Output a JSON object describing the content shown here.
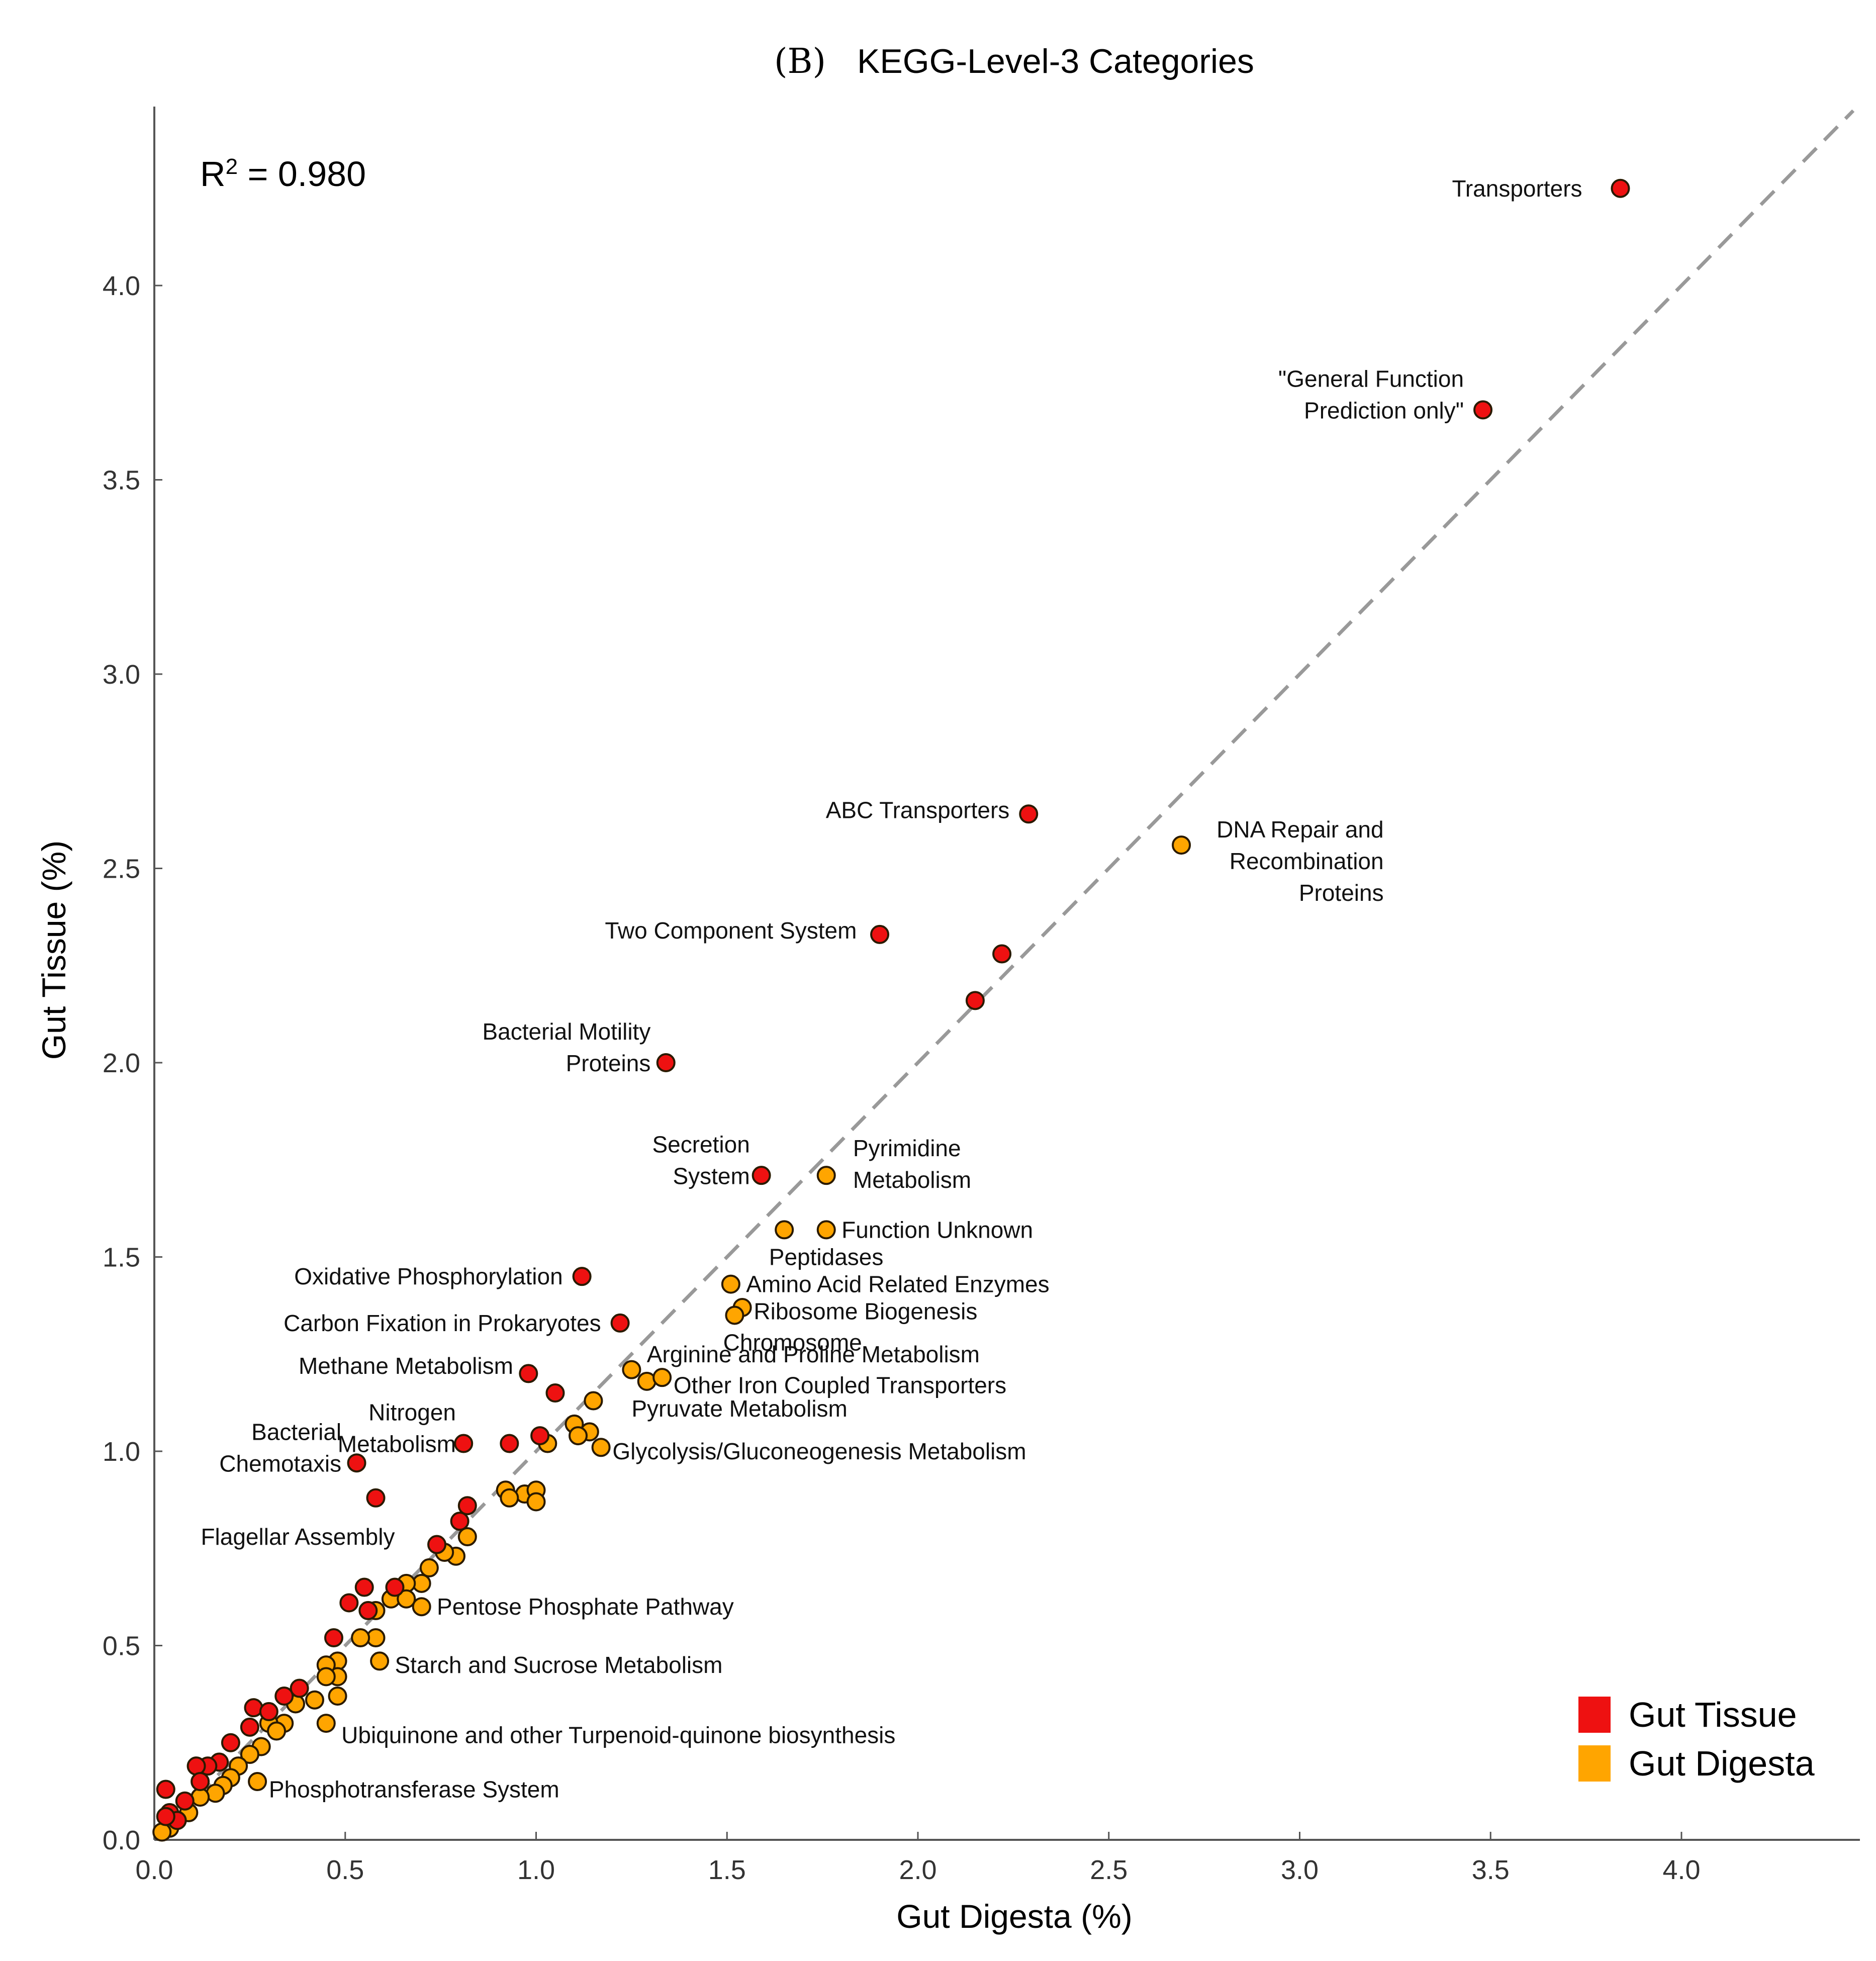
{
  "chart_data": {
    "type": "scatter",
    "title_prefix": "(B)",
    "title": "KEGG-Level-3 Categories",
    "xlabel": "Gut Digesta (%)",
    "ylabel": "Gut Tissue (%)",
    "xlim": [
      0.0,
      4.45
    ],
    "ylim": [
      0.0,
      4.45
    ],
    "xticks": [
      "0.0",
      "0.5",
      "1.0",
      "1.5",
      "2.0",
      "2.5",
      "3.0",
      "3.5",
      "4.0"
    ],
    "yticks": [
      "0.0",
      "0.5",
      "1.0",
      "1.5",
      "2.0",
      "2.5",
      "3.0",
      "3.5",
      "4.0"
    ],
    "r_squared": {
      "prefix": "R",
      "sup": "2",
      "text": " = 0.980"
    },
    "reference_line": {
      "style": "dashed",
      "color": "#999999",
      "from": [
        0,
        0
      ],
      "to": [
        4.45,
        4.45
      ]
    },
    "legend": {
      "position": "bottom-right",
      "entries": [
        {
          "label": "Gut Tissue",
          "color": "#ee1111"
        },
        {
          "label": "Gut Digesta",
          "color": "#ffa500"
        }
      ]
    },
    "series": [
      {
        "name": "Gut Tissue",
        "color": "#ee1111",
        "points": [
          [
            3.84,
            4.25
          ],
          [
            3.48,
            3.68
          ],
          [
            2.29,
            2.64
          ],
          [
            1.9,
            2.33
          ],
          [
            2.22,
            2.28
          ],
          [
            2.15,
            2.16
          ],
          [
            1.34,
            2.0
          ],
          [
            1.59,
            1.71
          ],
          [
            1.12,
            1.45
          ],
          [
            1.22,
            1.33
          ],
          [
            0.98,
            1.2
          ],
          [
            1.05,
            1.15
          ],
          [
            0.81,
            1.02
          ],
          [
            0.93,
            1.02
          ],
          [
            1.01,
            1.04
          ],
          [
            0.53,
            0.97
          ],
          [
            0.58,
            0.88
          ],
          [
            0.82,
            0.86
          ],
          [
            0.8,
            0.82
          ],
          [
            0.74,
            0.76
          ],
          [
            0.51,
            0.61
          ],
          [
            0.55,
            0.65
          ],
          [
            0.63,
            0.65
          ],
          [
            0.47,
            0.52
          ],
          [
            0.56,
            0.59
          ],
          [
            0.26,
            0.34
          ],
          [
            0.3,
            0.33
          ],
          [
            0.34,
            0.37
          ],
          [
            0.38,
            0.39
          ],
          [
            0.25,
            0.29
          ],
          [
            0.2,
            0.25
          ],
          [
            0.17,
            0.2
          ],
          [
            0.14,
            0.19
          ],
          [
            0.11,
            0.19
          ],
          [
            0.12,
            0.15
          ],
          [
            0.03,
            0.13
          ],
          [
            0.08,
            0.1
          ],
          [
            0.04,
            0.07
          ],
          [
            0.06,
            0.05
          ],
          [
            0.03,
            0.06
          ]
        ]
      },
      {
        "name": "Gut Digesta",
        "color": "#ffa500",
        "points": [
          [
            2.69,
            2.56
          ],
          [
            1.76,
            1.71
          ],
          [
            1.65,
            1.57
          ],
          [
            1.76,
            1.57
          ],
          [
            1.51,
            1.43
          ],
          [
            1.54,
            1.37
          ],
          [
            1.52,
            1.35
          ],
          [
            1.25,
            1.21
          ],
          [
            1.29,
            1.18
          ],
          [
            1.33,
            1.19
          ],
          [
            1.15,
            1.13
          ],
          [
            1.1,
            1.07
          ],
          [
            1.14,
            1.05
          ],
          [
            1.17,
            1.01
          ],
          [
            1.11,
            1.04
          ],
          [
            1.03,
            1.02
          ],
          [
            0.92,
            0.9
          ],
          [
            0.97,
            0.89
          ],
          [
            1.0,
            0.9
          ],
          [
            1.0,
            0.87
          ],
          [
            0.93,
            0.88
          ],
          [
            0.82,
            0.78
          ],
          [
            0.79,
            0.73
          ],
          [
            0.76,
            0.74
          ],
          [
            0.72,
            0.7
          ],
          [
            0.7,
            0.66
          ],
          [
            0.7,
            0.6
          ],
          [
            0.66,
            0.66
          ],
          [
            0.62,
            0.62
          ],
          [
            0.66,
            0.62
          ],
          [
            0.58,
            0.59
          ],
          [
            0.58,
            0.52
          ],
          [
            0.54,
            0.52
          ],
          [
            0.59,
            0.46
          ],
          [
            0.48,
            0.46
          ],
          [
            0.48,
            0.42
          ],
          [
            0.45,
            0.45
          ],
          [
            0.45,
            0.42
          ],
          [
            0.42,
            0.36
          ],
          [
            0.48,
            0.37
          ],
          [
            0.45,
            0.3
          ],
          [
            0.37,
            0.35
          ],
          [
            0.34,
            0.3
          ],
          [
            0.3,
            0.3
          ],
          [
            0.32,
            0.28
          ],
          [
            0.28,
            0.24
          ],
          [
            0.27,
            0.15
          ],
          [
            0.25,
            0.22
          ],
          [
            0.22,
            0.19
          ],
          [
            0.2,
            0.16
          ],
          [
            0.18,
            0.14
          ],
          [
            0.16,
            0.12
          ],
          [
            0.12,
            0.11
          ],
          [
            0.09,
            0.07
          ],
          [
            0.06,
            0.05
          ],
          [
            0.04,
            0.03
          ],
          [
            0.02,
            0.02
          ]
        ]
      }
    ],
    "annotations": [
      {
        "lines": [
          "Transporters"
        ],
        "at": [
          3.84,
          4.25
        ],
        "anchor": "end",
        "dx": -0.1,
        "dy": 0.0
      },
      {
        "lines": [
          "\"General Function",
          "Prediction only\""
        ],
        "at": [
          3.48,
          3.68
        ],
        "anchor": "end",
        "dx": -0.05,
        "dy": 0.08
      },
      {
        "lines": [
          "ABC Transporters"
        ],
        "at": [
          2.29,
          2.64
        ],
        "anchor": "end",
        "dx": -0.05,
        "dy": 0.01
      },
      {
        "lines": [
          "DNA Repair and",
          "Recombination",
          "Proteins"
        ],
        "at": [
          2.69,
          2.56
        ],
        "anchor": "end",
        "dx": 0.53,
        "dy": 0.04
      },
      {
        "lines": [
          "Two Component System"
        ],
        "at": [
          1.9,
          2.33
        ],
        "anchor": "end",
        "dx": -0.06,
        "dy": 0.01
      },
      {
        "lines": [
          "Bacterial Motility",
          "Proteins"
        ],
        "at": [
          1.34,
          2.0
        ],
        "anchor": "end",
        "dx": -0.04,
        "dy": 0.08
      },
      {
        "lines": [
          "Secretion",
          "System"
        ],
        "at": [
          1.59,
          1.71
        ],
        "anchor": "end",
        "dx": -0.03,
        "dy": 0.08
      },
      {
        "lines": [
          "Pyrimidine",
          "Metabolism"
        ],
        "at": [
          1.76,
          1.71
        ],
        "anchor": "start",
        "dx": 0.07,
        "dy": 0.07
      },
      {
        "lines": [
          "Function Unknown"
        ],
        "at": [
          1.76,
          1.57
        ],
        "anchor": "start",
        "dx": 0.04,
        "dy": 0.0
      },
      {
        "lines": [
          "Peptidases"
        ],
        "at": [
          1.65,
          1.57
        ],
        "anchor": "start",
        "dx": -0.04,
        "dy": -0.07
      },
      {
        "lines": [
          "Oxidative Phosphorylation"
        ],
        "at": [
          1.12,
          1.45
        ],
        "anchor": "end",
        "dx": -0.05,
        "dy": 0.0
      },
      {
        "lines": [
          "Amino Acid Related Enzymes"
        ],
        "at": [
          1.51,
          1.43
        ],
        "anchor": "start",
        "dx": 0.04,
        "dy": 0.0
      },
      {
        "lines": [
          "Carbon Fixation in Prokaryotes"
        ],
        "at": [
          1.22,
          1.33
        ],
        "anchor": "end",
        "dx": -0.05,
        "dy": 0.0
      },
      {
        "lines": [
          "Ribosome Biogenesis"
        ],
        "at": [
          1.54,
          1.37
        ],
        "anchor": "start",
        "dx": 0.03,
        "dy": -0.01
      },
      {
        "lines": [
          "Chromosome"
        ],
        "at": [
          1.52,
          1.35
        ],
        "anchor": "start",
        "dx": -0.03,
        "dy": -0.07
      },
      {
        "lines": [
          "Methane Metabolism"
        ],
        "at": [
          0.98,
          1.2
        ],
        "anchor": "end",
        "dx": -0.04,
        "dy": 0.02
      },
      {
        "lines": [
          "Arginine and Proline Metabolism"
        ],
        "at": [
          1.25,
          1.21
        ],
        "anchor": "start",
        "dx": 0.04,
        "dy": 0.04
      },
      {
        "lines": [
          "Other Iron Coupled Transporters"
        ],
        "at": [
          1.33,
          1.19
        ],
        "anchor": "start",
        "dx": 0.03,
        "dy": -0.02
      },
      {
        "lines": [
          "Pyruvate Metabolism"
        ],
        "at": [
          1.25,
          1.21
        ],
        "anchor": "start",
        "dx": 0.0,
        "dy": -0.1
      },
      {
        "lines": [
          "Nitrogen",
          "Metabolism"
        ],
        "at": [
          0.81,
          1.02
        ],
        "anchor": "end",
        "dx": -0.02,
        "dy": 0.08
      },
      {
        "lines": [
          "Bacterial",
          "Chemotaxis"
        ],
        "at": [
          0.53,
          0.97
        ],
        "anchor": "end",
        "dx": -0.04,
        "dy": 0.08
      },
      {
        "lines": [
          "Glycolysis/Gluconeogenesis Metabolism"
        ],
        "at": [
          1.17,
          1.01
        ],
        "anchor": "start",
        "dx": 0.03,
        "dy": -0.01
      },
      {
        "lines": [
          "Flagellar Assembly"
        ],
        "at": [
          0.58,
          0.88
        ],
        "anchor": "end",
        "dx": 0.05,
        "dy": -0.1
      },
      {
        "lines": [
          "Pentose Phosphate Pathway"
        ],
        "at": [
          0.7,
          0.6
        ],
        "anchor": "start",
        "dx": 0.04,
        "dy": 0.0
      },
      {
        "lines": [
          "Starch and Sucrose Metabolism"
        ],
        "at": [
          0.59,
          0.46
        ],
        "anchor": "start",
        "dx": 0.04,
        "dy": -0.01
      },
      {
        "lines": [
          "Ubiquinone and other Turpenoid-quinone biosynthesis"
        ],
        "at": [
          0.45,
          0.3
        ],
        "anchor": "start",
        "dx": 0.04,
        "dy": -0.03
      },
      {
        "lines": [
          "Phosphotransferase System"
        ],
        "at": [
          0.27,
          0.15
        ],
        "anchor": "start",
        "dx": 0.03,
        "dy": -0.02
      }
    ]
  }
}
